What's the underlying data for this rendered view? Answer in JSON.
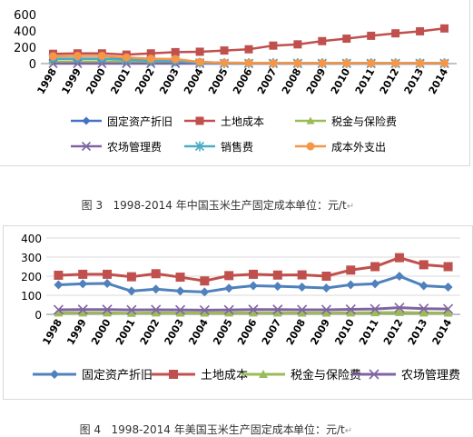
{
  "chart_data": [
    {
      "type": "line",
      "title": "",
      "xlabel": "",
      "ylabel": "",
      "categories": [
        "1998",
        "1999",
        "2000",
        "2001",
        "2002",
        "2003",
        "2004",
        "2005",
        "2006",
        "2007",
        "2008",
        "2009",
        "2010",
        "2011",
        "2012",
        "2013",
        "2014"
      ],
      "ylim": [
        0,
        600
      ],
      "yticks": [
        0,
        200,
        400,
        600
      ],
      "legend_position": "bottom",
      "series": [
        {
          "name": "固定资产折旧",
          "color": "#4472c4",
          "marker": "diamond",
          "values": [
            60,
            60,
            60,
            55,
            45,
            40,
            20,
            10,
            8,
            5,
            5,
            5,
            5,
            5,
            5,
            5,
            5
          ]
        },
        {
          "name": "土地成本",
          "color": "#c0504d",
          "marker": "square",
          "values": [
            120,
            125,
            125,
            110,
            125,
            140,
            145,
            160,
            175,
            220,
            235,
            275,
            305,
            340,
            370,
            395,
            430
          ]
        },
        {
          "name": "税金与保险费",
          "color": "#9bbb59",
          "marker": "triangle",
          "values": [
            25,
            25,
            25,
            20,
            18,
            15,
            5,
            2,
            2,
            2,
            2,
            2,
            2,
            2,
            2,
            2,
            2
          ]
        },
        {
          "name": "农场管理费",
          "color": "#8064a2",
          "marker": "x",
          "values": [
            0,
            0,
            0,
            0,
            0,
            0,
            0,
            0,
            0,
            0,
            0,
            0,
            0,
            0,
            0,
            0,
            0
          ]
        },
        {
          "name": "销售费",
          "color": "#4bacc6",
          "marker": "star",
          "values": [
            60,
            60,
            60,
            45,
            35,
            30,
            10,
            5,
            5,
            5,
            5,
            5,
            5,
            5,
            5,
            5,
            5
          ]
        },
        {
          "name": "成本外支出",
          "color": "#f79646",
          "marker": "circle",
          "values": [
            90,
            95,
            95,
            75,
            60,
            55,
            20,
            10,
            8,
            5,
            5,
            5,
            5,
            5,
            5,
            5,
            5
          ]
        }
      ]
    },
    {
      "type": "line",
      "title": "",
      "xlabel": "",
      "ylabel": "",
      "categories": [
        "1998",
        "1999",
        "2000",
        "2001",
        "2002",
        "2003",
        "2004",
        "2005",
        "2006",
        "2007",
        "2008",
        "2009",
        "2010",
        "2011",
        "2012",
        "2013",
        "2014"
      ],
      "ylim": [
        0,
        400
      ],
      "yticks": [
        0,
        100,
        200,
        300,
        400
      ],
      "legend_position": "bottom",
      "series": [
        {
          "name": "固定资产折旧",
          "color": "#4f81bd",
          "marker": "diamond",
          "values": [
            155,
            160,
            162,
            122,
            132,
            122,
            117,
            137,
            150,
            147,
            143,
            138,
            155,
            160,
            200,
            150,
            143
          ]
        },
        {
          "name": "土地成本",
          "color": "#c0504d",
          "marker": "square",
          "values": [
            205,
            210,
            210,
            197,
            213,
            195,
            175,
            203,
            210,
            206,
            207,
            200,
            232,
            250,
            297,
            260,
            250
          ]
        },
        {
          "name": "税金与保险费",
          "color": "#9bbb59",
          "marker": "triangle",
          "values": [
            8,
            8,
            8,
            6,
            8,
            7,
            7,
            8,
            8,
            8,
            7,
            7,
            8,
            9,
            10,
            8,
            7
          ]
        },
        {
          "name": "农场管理费",
          "color": "#8064a2",
          "marker": "x",
          "values": [
            24,
            25,
            25,
            23,
            24,
            23,
            22,
            23,
            25,
            25,
            24,
            24,
            26,
            28,
            35,
            30,
            28
          ]
        }
      ]
    }
  ],
  "captions": {
    "fig3_label": "图 3   1998-2014 年中国玉米生产固定成本",
    "fig3_units": "单位：元/t",
    "fig4_label": "图 4   1998-2014 年美国玉米生产固定成本",
    "fig4_units": "单位：元/t"
  }
}
